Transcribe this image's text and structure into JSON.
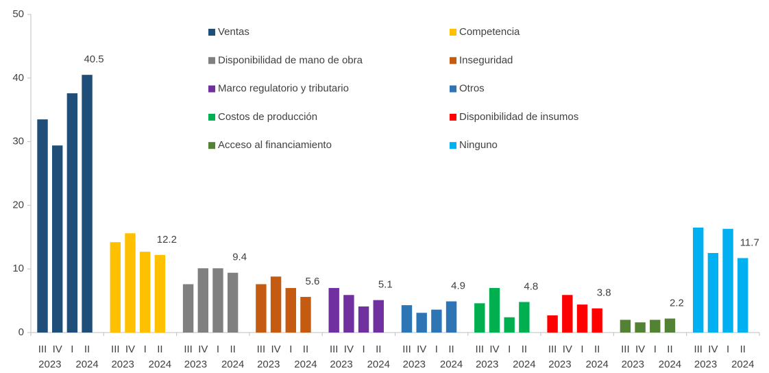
{
  "chart_data": {
    "type": "bar",
    "categories": [
      "Ventas",
      "Competencia",
      "Disponibilidad de mano de obra",
      "Inseguridad",
      "Marco regulatorio y tributario",
      "Otros",
      "Costos de producción",
      "Disponibilidad de insumos",
      "Acceso al financiamiento",
      "Ninguno"
    ],
    "colors": [
      "#1f4e79",
      "#ffc000",
      "#808080",
      "#c55a11",
      "#7030a0",
      "#2e75b6",
      "#00b050",
      "#ff0000",
      "#548235",
      "#00b0f0"
    ],
    "years": [
      "2023",
      "2024"
    ],
    "series": [
      {
        "name": "III",
        "values": [
          33.5,
          14.2,
          7.6,
          7.6,
          7.0,
          4.3,
          4.6,
          2.7,
          2.0,
          16.5
        ]
      },
      {
        "name": "IV",
        "values": [
          29.4,
          15.6,
          10.1,
          8.8,
          5.9,
          3.1,
          7.0,
          5.9,
          1.6,
          12.5
        ]
      },
      {
        "name": "I",
        "values": [
          37.6,
          12.7,
          10.1,
          7.0,
          4.1,
          3.6,
          2.4,
          4.4,
          2.0,
          16.3
        ]
      },
      {
        "name": "II",
        "values": [
          40.5,
          12.2,
          9.4,
          5.6,
          5.1,
          4.9,
          4.8,
          3.8,
          2.2,
          11.7
        ]
      }
    ],
    "ylim": [
      0,
      50
    ],
    "yticks": [
      0,
      10,
      20,
      30,
      40,
      50
    ]
  }
}
